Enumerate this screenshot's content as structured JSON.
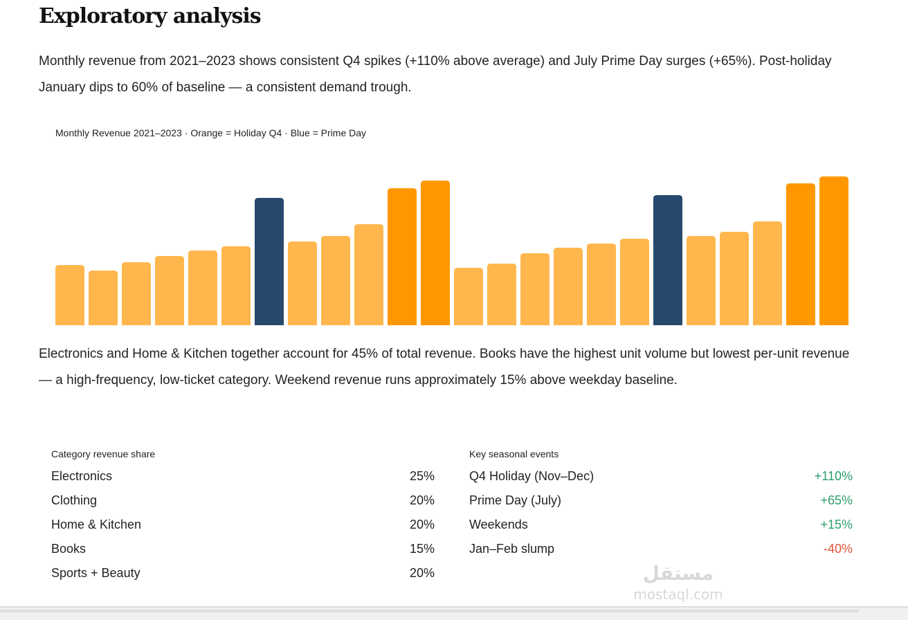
{
  "heading": "Exploratory analysis",
  "intro": "Monthly revenue from 2021–2023 shows consistent Q4 spikes (+110% above average) and July Prime Day surges (+65%). Post-holiday January dips to 60% of baseline — a consistent demand trough.",
  "chart_data": {
    "type": "bar",
    "title": "Monthly Revenue 2021–2023 · Orange = Holiday Q4 · Blue = Prime Day",
    "grid": false,
    "axes_visible": false,
    "values": [
      87,
      79,
      91,
      100,
      108,
      114,
      184,
      121,
      129,
      146,
      198,
      209,
      83,
      89,
      104,
      112,
      118,
      125,
      188,
      129,
      135,
      150,
      205,
      215
    ],
    "kinds": [
      "base",
      "base",
      "base",
      "base",
      "base",
      "base",
      "prime",
      "base",
      "base",
      "base",
      "holiday",
      "holiday",
      "base",
      "base",
      "base",
      "base",
      "base",
      "base",
      "prime",
      "base",
      "base",
      "base",
      "holiday",
      "holiday"
    ],
    "colors": {
      "base": "#FFB74D",
      "holiday": "#FF9800",
      "prime": "#27496D"
    }
  },
  "body": "Electronics and Home & Kitchen together account for 45% of total revenue. Books have the highest unit volume but lowest per-unit revenue — a high-frequency, low-ticket category. Weekend revenue runs approximately 15% above weekday baseline.",
  "category_table": {
    "title": "Category revenue share",
    "rows": [
      {
        "label": "Electronics",
        "value": "25%"
      },
      {
        "label": "Clothing",
        "value": "20%"
      },
      {
        "label": "Home & Kitchen",
        "value": "20%"
      },
      {
        "label": "Books",
        "value": "15%"
      },
      {
        "label": "Sports + Beauty",
        "value": "20%"
      }
    ]
  },
  "events_table": {
    "title": "Key seasonal events",
    "rows": [
      {
        "label": "Q4 Holiday (Nov–Dec)",
        "value": "+110%",
        "tone": "pos"
      },
      {
        "label": "Prime Day (July)",
        "value": "+65%",
        "tone": "pos"
      },
      {
        "label": "Weekends",
        "value": "+15%",
        "tone": "pos"
      },
      {
        "label": "Jan–Feb slump",
        "value": "-40%",
        "tone": "neg"
      }
    ]
  },
  "watermark": {
    "arabic": "مستقل",
    "latin": "mostaql.com"
  }
}
